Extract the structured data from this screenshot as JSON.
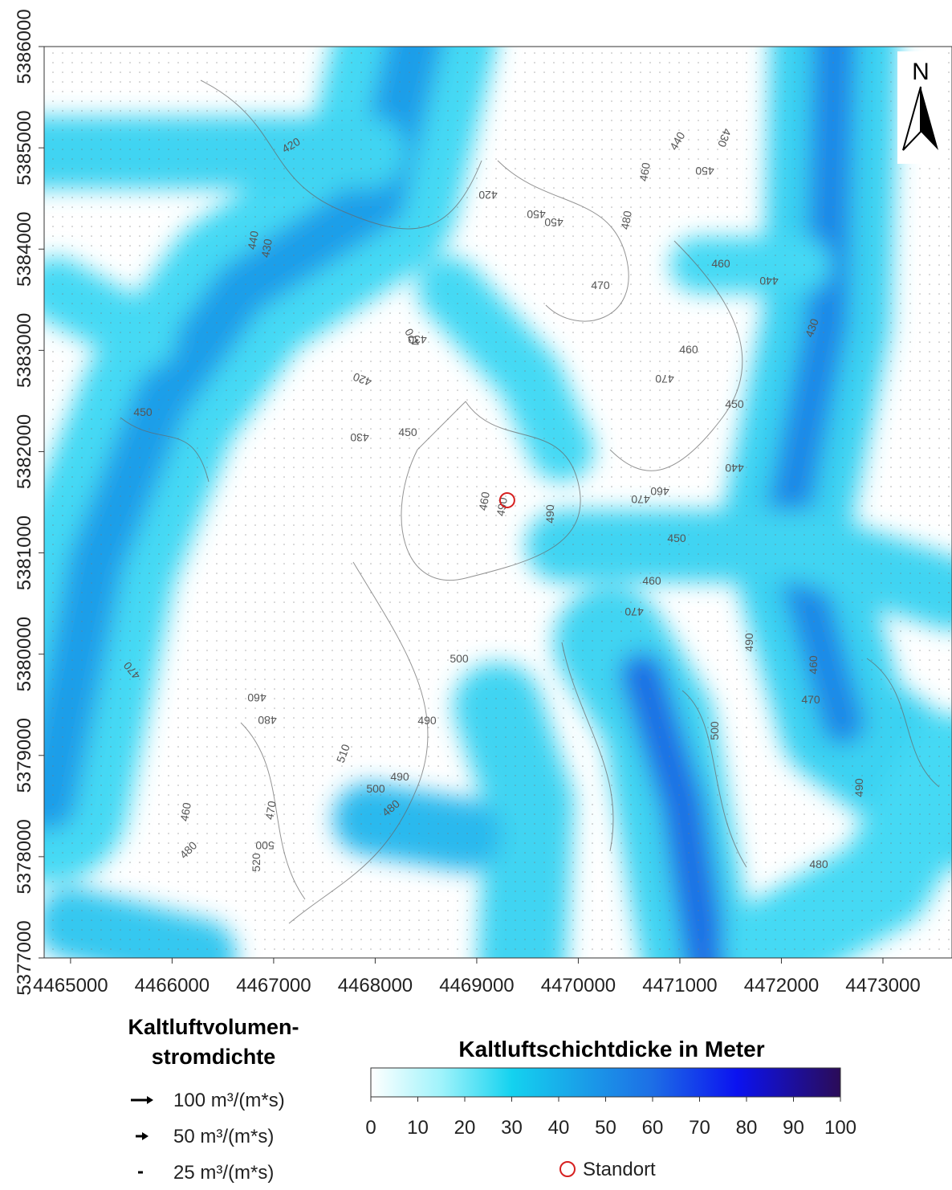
{
  "map": {
    "xlim": [
      4464740,
      4473680
    ],
    "ylim": [
      5377000,
      5386000
    ],
    "xticks": [
      4465000,
      4466000,
      4467000,
      4468000,
      4469000,
      4470000,
      4471000,
      4472000,
      4473000
    ],
    "yticks": [
      5377000,
      5378000,
      5379000,
      5380000,
      5381000,
      5382000,
      5383000,
      5384000,
      5385000,
      5386000
    ],
    "north": "N",
    "standort": {
      "x": 4469300,
      "y": 5381520
    },
    "contour_labels": [
      420,
      440,
      430,
      420,
      430,
      450,
      450,
      480,
      460,
      440,
      430,
      450,
      470,
      460,
      440,
      430,
      450,
      420,
      430,
      450,
      470,
      460,
      470,
      460,
      490,
      450,
      440,
      460,
      470,
      450,
      470,
      490,
      460,
      500,
      480,
      460,
      470,
      510,
      490,
      500,
      480,
      460,
      500,
      520,
      470,
      490,
      480,
      460,
      490,
      500,
      480,
      470,
      490
    ]
  },
  "vector_legend": {
    "title": [
      "Kaltluftvolumen-",
      "stromdichte"
    ],
    "entries": [
      "100 m³/(m*s)",
      "50 m³/(m*s)",
      "25 m³/(m*s)"
    ]
  },
  "colorbar": {
    "title": "Kaltluftschichtdicke in Meter",
    "lim": [
      0,
      100
    ],
    "ticks": [
      0,
      10,
      20,
      30,
      40,
      50,
      60,
      70,
      80,
      90,
      100
    ]
  },
  "standort_legend": "Standort"
}
